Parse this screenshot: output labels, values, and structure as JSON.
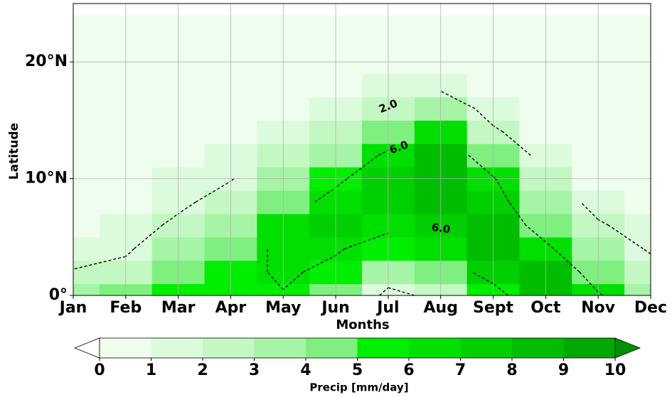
{
  "chart_data": {
    "type": "contourf",
    "xlabel": "Months",
    "ylabel": "Latitude",
    "colorbar_label": "Precip [mm/day]",
    "categories": [
      "Jan",
      "Feb",
      "Mar",
      "Apr",
      "May",
      "Jun",
      "Jul",
      "Aug",
      "Sept",
      "Oct",
      "Nov",
      "Dec"
    ],
    "latitudes": [
      0,
      2,
      4,
      6,
      8,
      10,
      12,
      14,
      16,
      18,
      20,
      22,
      24
    ],
    "ylim": [
      0,
      25
    ],
    "yticks": [
      {
        "value": 0,
        "label": "0°"
      },
      {
        "value": 10,
        "label": "10°N"
      },
      {
        "value": 20,
        "label": "20°N"
      }
    ],
    "grid": true,
    "values": [
      [
        3.2,
        2.1,
        1.3,
        0.9,
        0.6,
        0.4,
        0.3,
        0.2,
        0.1,
        0.1,
        0.1,
        0.1,
        0.1
      ],
      [
        4.2,
        2.6,
        1.7,
        1.1,
        0.7,
        0.5,
        0.3,
        0.2,
        0.1,
        0.1,
        0.1,
        0.1,
        0.1
      ],
      [
        5.5,
        4.6,
        3.6,
        2.4,
        1.6,
        1.0,
        0.6,
        0.4,
        0.2,
        0.1,
        0.1,
        0.1,
        0.1
      ],
      [
        5.7,
        5.3,
        4.6,
        3.8,
        2.8,
        1.9,
        1.2,
        0.7,
        0.4,
        0.2,
        0.1,
        0.1,
        0.1
      ],
      [
        5.9,
        6.3,
        6.6,
        6.0,
        4.8,
        3.5,
        2.0,
        1.2,
        0.6,
        0.3,
        0.2,
        0.1,
        0.1
      ],
      [
        4.5,
        5.5,
        6.2,
        7.0,
        6.8,
        5.5,
        3.8,
        2.0,
        1.0,
        0.5,
        0.2,
        0.1,
        0.1
      ],
      [
        1.5,
        3.0,
        5.0,
        6.5,
        7.5,
        7.8,
        6.5,
        4.2,
        2.0,
        1.0,
        0.5,
        0.2,
        0.1
      ],
      [
        2.5,
        4.5,
        6.0,
        7.5,
        8.3,
        8.8,
        8.3,
        6.0,
        3.5,
        1.5,
        0.6,
        0.3,
        0.1
      ],
      [
        5.0,
        7.0,
        8.3,
        8.0,
        7.2,
        6.2,
        4.0,
        2.3,
        1.2,
        0.6,
        0.3,
        0.2,
        0.1
      ],
      [
        8.5,
        8.2,
        6.5,
        4.8,
        3.2,
        2.0,
        1.2,
        0.7,
        0.4,
        0.2,
        0.1,
        0.1,
        0.1
      ],
      [
        6.2,
        4.8,
        3.2,
        2.2,
        1.4,
        0.9,
        0.5,
        0.3,
        0.2,
        0.1,
        0.1,
        0.1,
        0.1
      ],
      [
        3.8,
        2.7,
        1.8,
        1.2,
        0.8,
        0.5,
        0.3,
        0.2,
        0.1,
        0.1,
        0.1,
        0.1,
        0.1
      ]
    ],
    "levels": [
      0,
      1,
      2,
      3,
      4,
      5,
      6,
      7,
      8,
      9,
      10
    ],
    "colors": [
      "#effdef",
      "#dcfbdc",
      "#c3f8c3",
      "#a6f4a6",
      "#7fef7f",
      "#00ee00",
      "#00df00",
      "#00cf00",
      "#00bd00",
      "#00a800"
    ],
    "under_color": "#ffffff",
    "over_color": "#009000",
    "contour_levels": [
      2,
      6
    ],
    "contour_labels": [
      "2.0",
      "6.0",
      "6.0"
    ]
  }
}
